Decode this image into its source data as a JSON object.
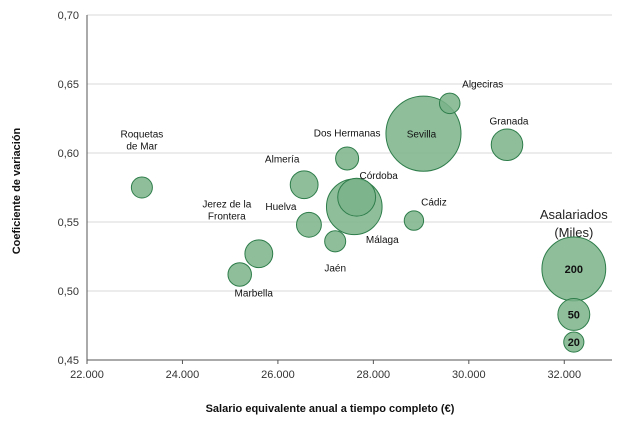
{
  "chart_data": {
    "type": "scatter",
    "subtype": "bubble",
    "xlabel": "Salario equivalente anual a tiempo completo (€)",
    "ylabel": "Coeficiente de variación",
    "xlim": [
      22000,
      33000
    ],
    "ylim": [
      0.45,
      0.7
    ],
    "xticks": [
      22000,
      24000,
      26000,
      28000,
      30000,
      32000
    ],
    "xtick_labels": [
      "22.000",
      "24.000",
      "26.000",
      "28.000",
      "30.000",
      "32.000"
    ],
    "yticks": [
      0.45,
      0.5,
      0.55,
      0.6,
      0.65,
      0.7
    ],
    "ytick_labels": [
      "0,45",
      "0,50",
      "0,55",
      "0,60",
      "0,65",
      "0,70"
    ],
    "grid": "horizontal",
    "bubble_color": "#7bb38a",
    "bubble_edge_color": "#2e7d4a",
    "points": [
      {
        "name": "Roquetas de Mar",
        "label_lines": [
          "Roquetas",
          "de Mar"
        ],
        "x": 23150,
        "y": 0.575,
        "size": 20
      },
      {
        "name": "Marbella",
        "label_lines": [
          "Marbella"
        ],
        "x": 25200,
        "y": 0.512,
        "size": 25
      },
      {
        "name": "Jerez de la Frontera",
        "label_lines": [
          "Jerez de la",
          "Frontera"
        ],
        "x": 25600,
        "y": 0.527,
        "size": 35
      },
      {
        "name": "Almería",
        "label_lines": [
          "Almería"
        ],
        "x": 26550,
        "y": 0.577,
        "size": 35
      },
      {
        "name": "Huelva",
        "label_lines": [
          "Huelva"
        ],
        "x": 26650,
        "y": 0.548,
        "size": 28
      },
      {
        "name": "Jaén",
        "label_lines": [
          "Jaén"
        ],
        "x": 27200,
        "y": 0.536,
        "size": 20
      },
      {
        "name": "Dos Hermanas",
        "label_lines": [
          "Dos Hermanas"
        ],
        "x": 27450,
        "y": 0.596,
        "size": 24
      },
      {
        "name": "Málaga",
        "label_lines": [
          "Málaga"
        ],
        "x": 27600,
        "y": 0.561,
        "size": 140
      },
      {
        "name": "Córdoba",
        "label_lines": [
          "Córdoba"
        ],
        "x": 27650,
        "y": 0.568,
        "size": 65
      },
      {
        "name": "Cádiz",
        "label_lines": [
          "Cádiz"
        ],
        "x": 28850,
        "y": 0.551,
        "size": 17
      },
      {
        "name": "Sevilla",
        "label_lines": [
          "Sevilla"
        ],
        "x": 29050,
        "y": 0.614,
        "size": 255
      },
      {
        "name": "Algeciras",
        "label_lines": [
          "Algeciras"
        ],
        "x": 29600,
        "y": 0.636,
        "size": 19
      },
      {
        "name": "Granada",
        "label_lines": [
          "Granada"
        ],
        "x": 30800,
        "y": 0.606,
        "size": 45
      }
    ],
    "size_legend": {
      "title_lines": [
        "Asalariados",
        "(Miles)"
      ],
      "x": 32200,
      "items": [
        {
          "label": "200",
          "size": 200,
          "y": 0.516
        },
        {
          "label": "50",
          "size": 50,
          "y": 0.483
        },
        {
          "label": "20",
          "size": 20,
          "y": 0.463
        }
      ]
    }
  }
}
